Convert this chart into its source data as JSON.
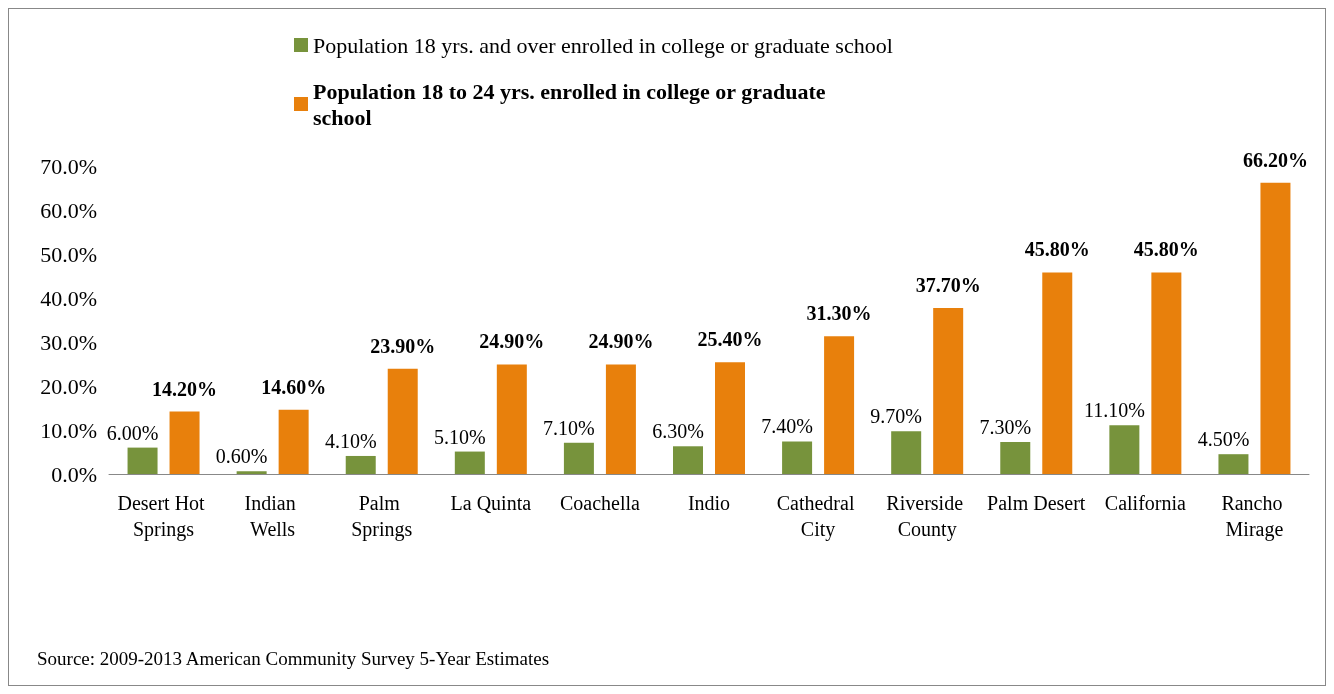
{
  "chart_data": {
    "type": "bar",
    "categories": [
      "Desert Hot Springs",
      "Indian Wells",
      "Palm Springs",
      "La Quinta",
      "Coachella",
      "Indio",
      "Cathedral City",
      "Riverside County",
      "Palm Desert",
      "California",
      "Rancho Mirage"
    ],
    "series": [
      {
        "name": "Population 18 yrs. and over enrolled in college or graduate school",
        "color": "#77933c",
        "values": [
          6.0,
          0.6,
          4.1,
          5.1,
          7.1,
          6.3,
          7.4,
          9.7,
          7.3,
          11.1,
          4.5
        ],
        "value_labels": [
          "6.00%",
          "0.60%",
          "4.10%",
          "5.10%",
          "7.10%",
          "6.30%",
          "7.40%",
          "9.70%",
          "7.30%",
          "11.10%",
          "4.50%"
        ]
      },
      {
        "name": "Population 18 to 24 yrs. enrolled in college or graduate school",
        "color": "#e8800c",
        "values": [
          14.2,
          14.6,
          23.9,
          24.9,
          24.9,
          25.4,
          31.3,
          37.7,
          45.8,
          45.8,
          66.2
        ],
        "value_labels": [
          "14.20%",
          "14.60%",
          "23.90%",
          "24.90%",
          "24.90%",
          "25.40%",
          "31.30%",
          "37.70%",
          "45.80%",
          "45.80%",
          "66.20%"
        ]
      }
    ],
    "ylim": [
      0,
      70
    ],
    "yticks": [
      {
        "value": 0,
        "label": "0.0%"
      },
      {
        "value": 10,
        "label": "10.0%"
      },
      {
        "value": 20,
        "label": "20.0%"
      },
      {
        "value": 30,
        "label": "30.0%"
      },
      {
        "value": 40,
        "label": "40.0%"
      },
      {
        "value": 50,
        "label": "50.0%"
      },
      {
        "value": 60,
        "label": "60.0%"
      },
      {
        "value": 70,
        "label": "70.0%"
      }
    ],
    "grid": false,
    "legend": "top",
    "annotations": [
      "Source: 2009-2013 American Community Survey 5-Year Estimates"
    ]
  }
}
